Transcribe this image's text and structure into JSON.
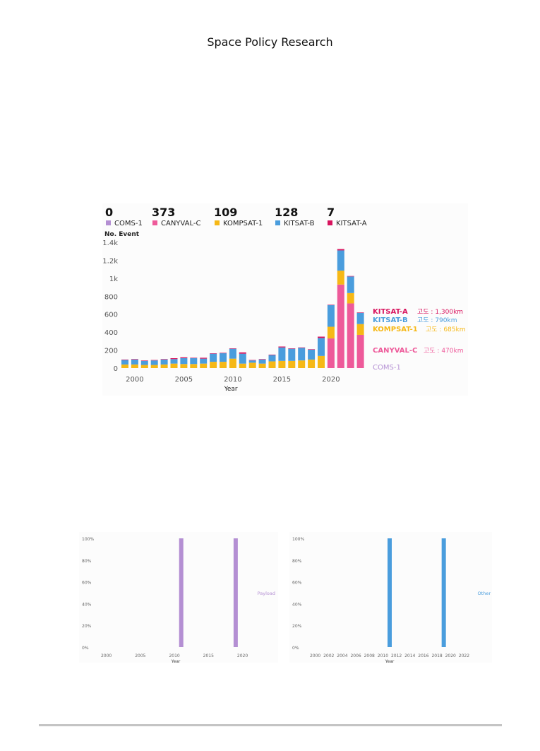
{
  "page": {
    "header": "Space Policy Research"
  },
  "colors": {
    "COMS-1": "#b48fd3",
    "CANYVAL-C": "#ee5a9a",
    "KOMPSAT-1": "#f6b816",
    "KITSAT-B": "#4a9ddd",
    "KITSAT-A": "#d8145e"
  },
  "chart_data": [
    {
      "type": "bar",
      "stacked": true,
      "summary": [
        {
          "name": "COMS-1",
          "count": "0"
        },
        {
          "name": "CANYVAL-C",
          "count": "373"
        },
        {
          "name": "KOMPSAT-1",
          "count": "109"
        },
        {
          "name": "KITSAT-B",
          "count": "128"
        },
        {
          "name": "KITSAT-A",
          "count": "7"
        }
      ],
      "ylabel": "No. Event",
      "xlabel": "Year",
      "ylim": [
        0,
        1400
      ],
      "yticks": [
        "0",
        "200",
        "400",
        "600",
        "800",
        "1k",
        "1.2k",
        "1.4k"
      ],
      "ytick_values": [
        0,
        200,
        400,
        600,
        800,
        1000,
        1200,
        1400
      ],
      "xticks": [
        "2000",
        "2005",
        "2010",
        "2015",
        "2020"
      ],
      "xtick_values": [
        2000,
        2005,
        2010,
        2015,
        2020
      ],
      "x": [
        1999,
        2000,
        2001,
        2002,
        2003,
        2004,
        2005,
        2006,
        2007,
        2008,
        2009,
        2010,
        2011,
        2012,
        2013,
        2014,
        2015,
        2016,
        2017,
        2018,
        2019,
        2020,
        2021,
        2022,
        2023
      ],
      "series": [
        {
          "name": "COMS-1",
          "values": [
            0,
            0,
            0,
            0,
            0,
            0,
            0,
            0,
            0,
            0,
            0,
            0,
            0,
            0,
            0,
            0,
            0,
            0,
            0,
            0,
            0,
            0,
            0,
            0,
            0
          ]
        },
        {
          "name": "CANYVAL-C",
          "values": [
            0,
            0,
            0,
            0,
            0,
            0,
            0,
            0,
            0,
            0,
            0,
            0,
            0,
            0,
            0,
            0,
            0,
            0,
            0,
            0,
            0,
            330,
            930,
            720,
            370
          ]
        },
        {
          "name": "KOMPSAT-1",
          "values": [
            40,
            40,
            35,
            35,
            40,
            50,
            45,
            45,
            50,
            70,
            70,
            105,
            50,
            60,
            50,
            75,
            80,
            80,
            85,
            95,
            135,
            130,
            155,
            115,
            120
          ]
        },
        {
          "name": "KITSAT-B",
          "values": [
            50,
            55,
            45,
            50,
            55,
            50,
            65,
            65,
            55,
            90,
            95,
            110,
            110,
            25,
            45,
            70,
            150,
            135,
            140,
            110,
            200,
            240,
            225,
            185,
            125
          ]
        },
        {
          "name": "KITSAT-A",
          "values": [
            5,
            5,
            5,
            5,
            5,
            10,
            10,
            5,
            10,
            5,
            5,
            5,
            15,
            5,
            5,
            5,
            10,
            5,
            5,
            5,
            15,
            5,
            15,
            5,
            5
          ]
        }
      ],
      "annotations": [
        {
          "name": "KITSAT-A",
          "detail": "고도 : 1,300km",
          "value": 1300
        },
        {
          "name": "KITSAT-B",
          "detail": "고도 : 790km",
          "value": 790
        },
        {
          "name": "KOMPSAT-1",
          "detail": "고도 : 685km",
          "value": 685
        },
        {
          "name": "CANYVAL-C",
          "detail": "고도 : 470km",
          "value": 470
        },
        {
          "name": "COMS-1",
          "detail": "",
          "value": 0
        }
      ]
    },
    {
      "type": "bar",
      "series_name": "Payload",
      "color": "#b48fd3",
      "xlabel": "Year",
      "ylim": [
        0,
        100
      ],
      "yticks": [
        "0%",
        "20%",
        "40%",
        "60%",
        "80%",
        "100%"
      ],
      "ytick_values": [
        0,
        20,
        40,
        60,
        80,
        100
      ],
      "xticks": [
        "2000",
        "2005",
        "2010",
        "2015",
        "2020"
      ],
      "xtick_values": [
        2000,
        2005,
        2010,
        2015,
        2020
      ],
      "xlim": [
        1999,
        2021.5
      ],
      "x": [
        2011,
        2019
      ],
      "values": [
        100,
        100
      ]
    },
    {
      "type": "bar",
      "series_name": "Other",
      "color": "#4a9ddd",
      "xlabel": "Year",
      "ylim": [
        0,
        100
      ],
      "yticks": [
        "0%",
        "20%",
        "40%",
        "60%",
        "80%",
        "100%"
      ],
      "ytick_values": [
        0,
        20,
        40,
        60,
        80,
        100
      ],
      "xticks": [
        "2000",
        "2002",
        "2004",
        "2006",
        "2008",
        "2010",
        "2012",
        "2014",
        "2016",
        "2018",
        "2020",
        "2022"
      ],
      "xtick_values": [
        2000,
        2002,
        2004,
        2006,
        2008,
        2010,
        2012,
        2014,
        2016,
        2018,
        2020,
        2022
      ],
      "xlim": [
        1999,
        2023
      ],
      "x": [
        2011,
        2019
      ],
      "values": [
        100,
        100
      ]
    }
  ]
}
